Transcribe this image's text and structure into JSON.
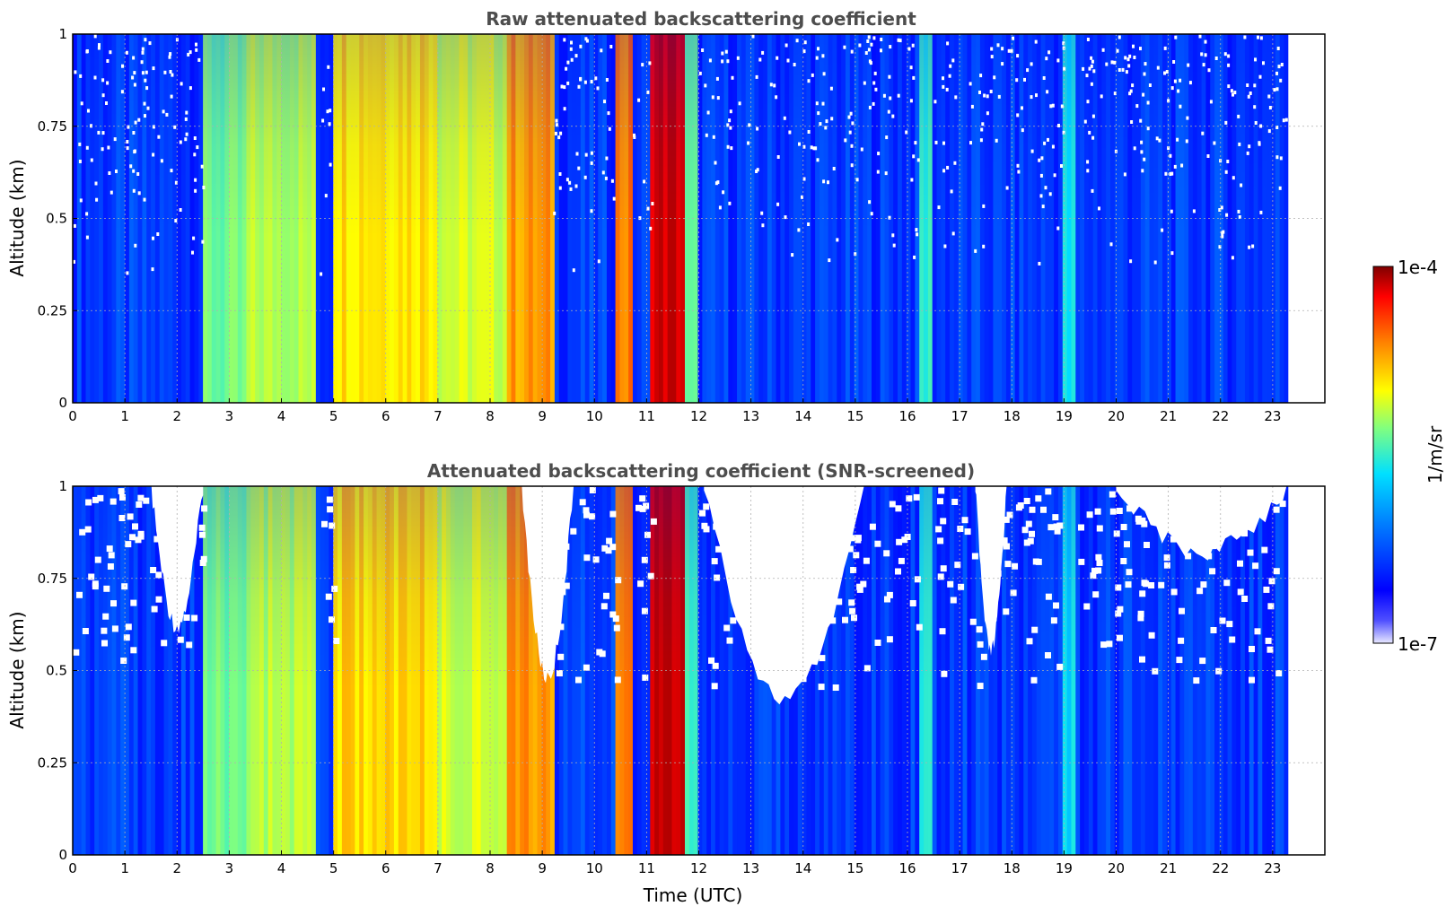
{
  "chart_data": [
    {
      "type": "heatmap",
      "title": "Raw attenuated backscattering coefficient",
      "xlabel": "",
      "ylabel": "Altitude (km)",
      "xlim": [
        0,
        24
      ],
      "ylim": [
        0,
        1
      ],
      "xticks": [
        "0",
        "1",
        "2",
        "3",
        "4",
        "5",
        "6",
        "7",
        "8",
        "9",
        "10",
        "11",
        "12",
        "13",
        "14",
        "15",
        "16",
        "17",
        "18",
        "19",
        "20",
        "21",
        "22",
        "23"
      ],
      "yticks": [
        "0",
        "0.25",
        "0.5",
        "0.75",
        "1"
      ],
      "grid": true,
      "data_end_time": 23.3,
      "features": [
        {
          "t0": 0.0,
          "t1": 2.5,
          "level": 0.18
        },
        {
          "t0": 2.5,
          "t1": 3.3,
          "level": 0.48
        },
        {
          "t0": 3.3,
          "t1": 4.7,
          "level": 0.55
        },
        {
          "t0": 5.0,
          "t1": 7.0,
          "level": 0.66
        },
        {
          "t0": 7.0,
          "t1": 8.3,
          "level": 0.58
        },
        {
          "t0": 8.3,
          "t1": 9.2,
          "level": 0.72
        },
        {
          "t0": 10.4,
          "t1": 10.7,
          "level": 0.75
        },
        {
          "t0": 11.1,
          "t1": 11.7,
          "level": 0.92
        },
        {
          "t0": 11.7,
          "t1": 12.0,
          "level": 0.45
        },
        {
          "t0": 16.2,
          "t1": 16.5,
          "level": 0.42
        },
        {
          "t0": 19.0,
          "t1": 19.2,
          "level": 0.38
        }
      ]
    },
    {
      "type": "heatmap",
      "title": "Attenuated backscattering coefficient (SNR-screened)",
      "xlabel": "Time (UTC)",
      "ylabel": "Altitude (km)",
      "xlim": [
        0,
        24
      ],
      "ylim": [
        0,
        1
      ],
      "xticks": [
        "0",
        "1",
        "2",
        "3",
        "4",
        "5",
        "6",
        "7",
        "8",
        "9",
        "10",
        "11",
        "12",
        "13",
        "14",
        "15",
        "16",
        "17",
        "18",
        "19",
        "20",
        "21",
        "22",
        "23"
      ],
      "yticks": [
        "0",
        "0.25",
        "0.5",
        "0.75",
        "1"
      ],
      "grid": true,
      "data_end_time": 23.3
    }
  ],
  "colorbar": {
    "label": "1/m/sr",
    "max_label": "1e-4",
    "min_label": "1e-7",
    "colors": [
      "#e8e8ff",
      "#0000ff",
      "#0080ff",
      "#00e0ff",
      "#80ff80",
      "#ffff00",
      "#ff8000",
      "#ff0000",
      "#800000"
    ]
  }
}
